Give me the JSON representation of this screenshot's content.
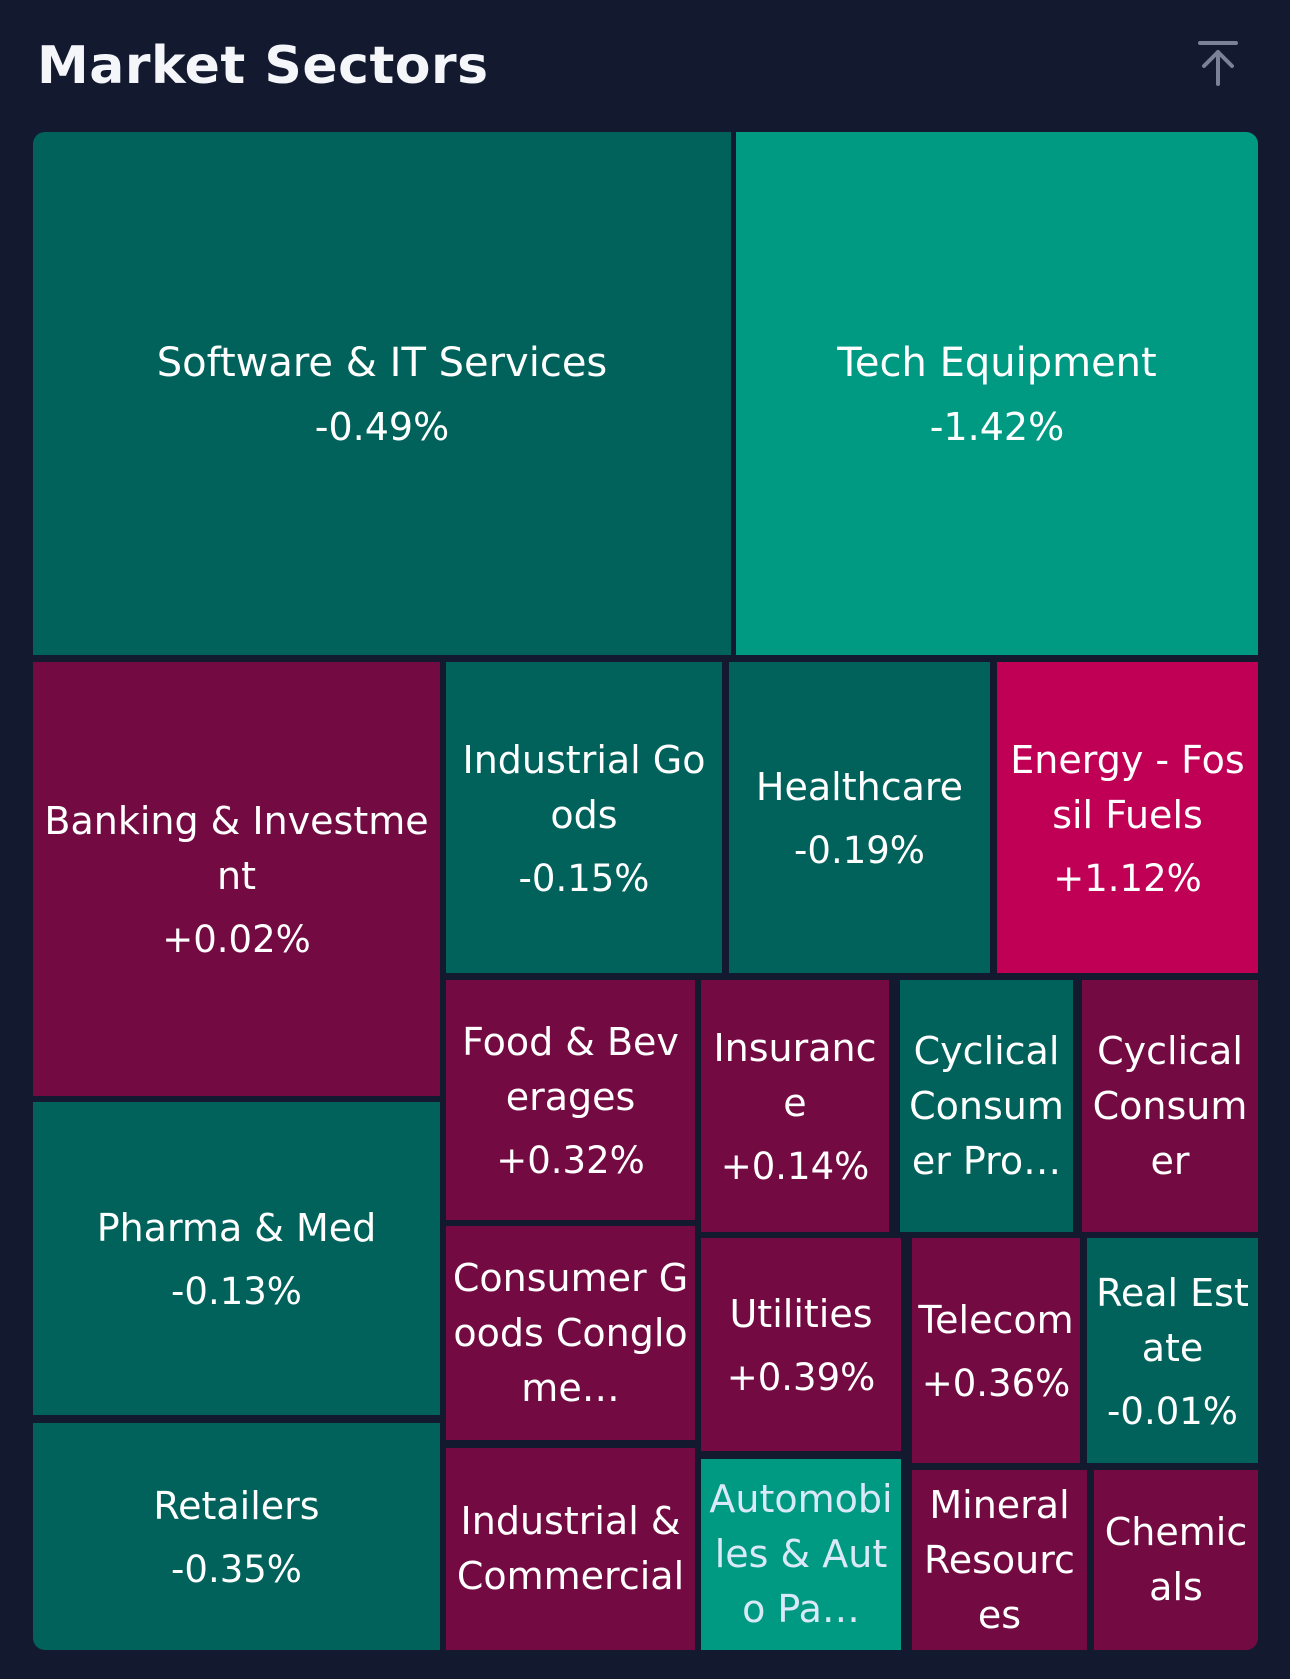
{
  "header": {
    "title": "Market Sectors",
    "scroll_top_icon": "arrow-up-to-line-icon"
  },
  "colors": {
    "background": "#131a30",
    "negative_dark": "#00625a",
    "negative_bright": "#009a83",
    "positive_dark": "#730b42",
    "positive_bright": "#c00055"
  },
  "sectors": [
    {
      "name": "Software & IT Services",
      "change": "-0.49%"
    },
    {
      "name": "Tech Equipment",
      "change": "-1.42%"
    },
    {
      "name": "Banking & Investment",
      "change": "+0.02%"
    },
    {
      "name": "Industrial Goods",
      "change": "-0.15%"
    },
    {
      "name": "Healthcare",
      "change": "-0.19%"
    },
    {
      "name": "Energy - Fossil Fuels",
      "change": "+1.12%"
    },
    {
      "name": "Food & Beverages",
      "change": "+0.32%"
    },
    {
      "name": "Insurance",
      "change": "+0.14%"
    },
    {
      "name": "Cyclical Consumer Pro…",
      "change": ""
    },
    {
      "name": "Cyclical Consumer",
      "change": ""
    },
    {
      "name": "Pharma & Med",
      "change": "-0.13%"
    },
    {
      "name": "Consumer Goods Conglome…",
      "change": ""
    },
    {
      "name": "Utilities",
      "change": "+0.39%"
    },
    {
      "name": "Telecom",
      "change": "+0.36%"
    },
    {
      "name": "Real Estate",
      "change": "-0.01%"
    },
    {
      "name": "Retailers",
      "change": "-0.35%"
    },
    {
      "name": "Industrial & Commercial",
      "change": ""
    },
    {
      "name": "Automobiles & Auto Pa…",
      "change": ""
    },
    {
      "name": "Mineral Resources",
      "change": ""
    },
    {
      "name": "Chemicals",
      "change": ""
    }
  ]
}
